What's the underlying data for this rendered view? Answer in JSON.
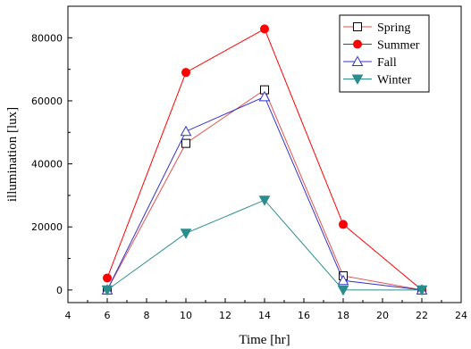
{
  "chart_data": {
    "type": "line",
    "xlabel": "Time [hr]",
    "ylabel": "illumination [lux]",
    "xlim": [
      4,
      24
    ],
    "ylim": [
      -4000,
      90000
    ],
    "x_ticks": [
      4,
      6,
      8,
      10,
      12,
      14,
      16,
      18,
      20,
      22,
      24
    ],
    "y_ticks": [
      0,
      20000,
      40000,
      60000,
      80000
    ],
    "x_tick_labels": [
      "4",
      "6",
      "8",
      "10",
      "12",
      "14",
      "16",
      "18",
      "20",
      "22",
      "24"
    ],
    "y_tick_labels": [
      "0",
      "20000",
      "40000",
      "60000",
      "80000"
    ],
    "grid": false,
    "legend_position": "top-right",
    "x": [
      6,
      10,
      14,
      18,
      22
    ],
    "series": [
      {
        "name": "Spring",
        "color": "#000000",
        "line_color": "#e0524f",
        "marker": "square-open",
        "values": [
          0,
          46500,
          63500,
          4500,
          0
        ]
      },
      {
        "name": "Summer",
        "color": "#ff0000",
        "line_color": "#ff0000",
        "marker": "circle-filled",
        "values": [
          3800,
          69000,
          82800,
          20800,
          0
        ]
      },
      {
        "name": "Fall",
        "color": "#3333cc",
        "line_color": "#3333cc",
        "marker": "triangle-up-open",
        "values": [
          0,
          50300,
          61300,
          3000,
          0
        ]
      },
      {
        "name": "Winter",
        "color": "#2a8c8c",
        "line_color": "#2a8c8c",
        "marker": "triangle-down-filled",
        "values": [
          0,
          18000,
          28500,
          0,
          0
        ]
      }
    ]
  }
}
